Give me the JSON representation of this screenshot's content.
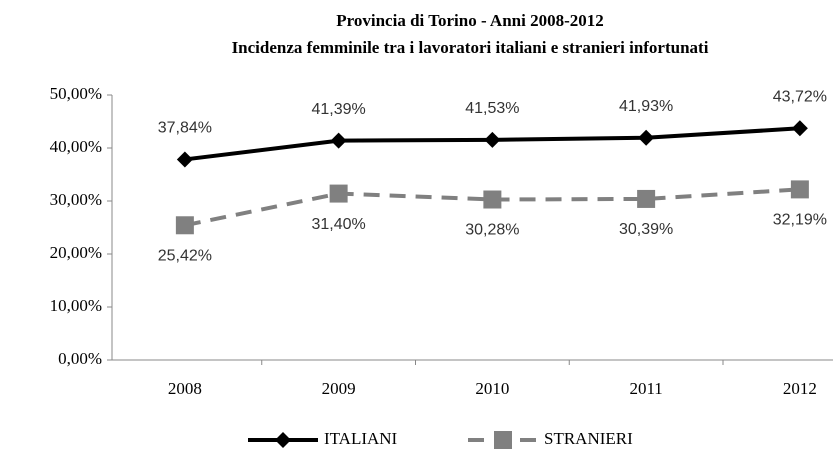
{
  "chart_data": {
    "type": "line",
    "title": "Provincia di Torino - Anni 2008-2012",
    "subtitle": "Incidenza femminile tra i lavoratori italiani e stranieri infortunati",
    "categories": [
      "2008",
      "2009",
      "2010",
      "2011",
      "2012"
    ],
    "series": [
      {
        "name": "ITALIANI",
        "color": "#000000",
        "marker": "diamond",
        "dash": false,
        "values": [
          37.84,
          41.39,
          41.53,
          41.93,
          43.72
        ],
        "value_labels": [
          "37,84%",
          "41,39%",
          "41,53%",
          "41,93%",
          "43,72%"
        ]
      },
      {
        "name": "STRANIERI",
        "color": "#808080",
        "marker": "square",
        "dash": true,
        "values": [
          25.42,
          31.4,
          30.28,
          30.39,
          32.19
        ],
        "value_labels": [
          "25,42%",
          "31,40%",
          "30,28%",
          "30,39%",
          "32,19%"
        ]
      }
    ],
    "ylim": [
      0,
      50
    ],
    "yticks": [
      {
        "value": 0,
        "label": "0,00%"
      },
      {
        "value": 10,
        "label": "10,00%"
      },
      {
        "value": 20,
        "label": "20,00%"
      },
      {
        "value": 30,
        "label": "30,00%"
      },
      {
        "value": 40,
        "label": "40,00%"
      },
      {
        "value": 50,
        "label": "50,00%"
      }
    ],
    "grid": false,
    "legend": "bottom"
  }
}
